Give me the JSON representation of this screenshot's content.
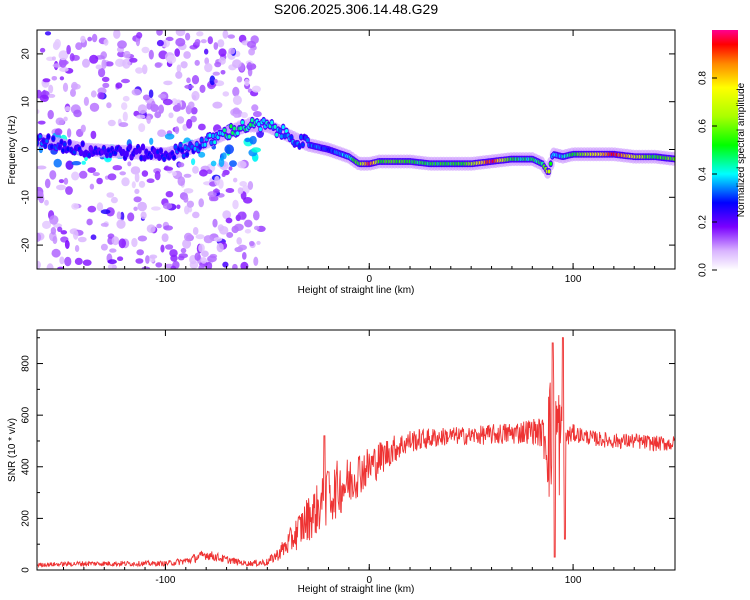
{
  "title": "S206.2025.306.14.48.G29",
  "chart_data": [
    {
      "type": "heatmap",
      "title": "S206.2025.306.14.48.G29",
      "xlabel": "Height of straight line (km)",
      "ylabel": "Frequency (Hz)",
      "xlim": [
        -163,
        150
      ],
      "ylim": [
        -25,
        25
      ],
      "xticks": [
        -100,
        0,
        100
      ],
      "yticks": [
        -20,
        -10,
        0,
        10,
        20
      ],
      "ridge": {
        "x": [
          -163,
          -140,
          -120,
          -100,
          -90,
          -80,
          -70,
          -60,
          -50,
          -40,
          -30,
          -20,
          -10,
          -5,
          0,
          5,
          10,
          20,
          30,
          40,
          50,
          60,
          70,
          80,
          85,
          88,
          90,
          95,
          100,
          110,
          120,
          130,
          140,
          150
        ],
        "freq": [
          2,
          0,
          -0.5,
          -1,
          0,
          1.5,
          3.5,
          5,
          5,
          3,
          1,
          0,
          -1.5,
          -3,
          -3,
          -2.5,
          -2.5,
          -2.5,
          -3,
          -3,
          -3,
          -2.5,
          -2,
          -2,
          -3,
          -5,
          -1,
          -1.5,
          -1,
          -1,
          -1,
          -1.5,
          -1.5,
          -2
        ],
        "amplitude": [
          0.3,
          0.25,
          0.25,
          0.25,
          0.3,
          0.35,
          0.45,
          0.45,
          0.4,
          0.35,
          0.3,
          0.3,
          0.4,
          0.55,
          0.95,
          0.55,
          0.6,
          0.5,
          0.5,
          0.5,
          0.6,
          0.95,
          0.5,
          0.45,
          0.5,
          0.7,
          0.35,
          0.4,
          0.5,
          0.7,
          0.95,
          0.7,
          0.5,
          0.6
        ]
      },
      "colorbar": {
        "label": "Normalized spectral amplitude",
        "ticks": [
          0.0,
          0.2,
          0.4,
          0.6,
          0.8
        ],
        "range": [
          0,
          1
        ]
      }
    },
    {
      "type": "line",
      "xlabel": "Height of straight line (km)",
      "ylabel": "SNR (10 * v/v)",
      "xlim": [
        -163,
        150
      ],
      "ylim": [
        0,
        930
      ],
      "xticks": [
        -100,
        0,
        100
      ],
      "yticks": [
        0,
        200,
        400,
        600,
        800
      ],
      "series": [
        {
          "name": "SNR",
          "color": "#ee3333",
          "x": [
            -163,
            -140,
            -120,
            -100,
            -90,
            -80,
            -70,
            -60,
            -50,
            -45,
            -40,
            -35,
            -30,
            -25,
            -20,
            -15,
            -10,
            -5,
            0,
            5,
            10,
            15,
            20,
            30,
            40,
            50,
            60,
            70,
            80,
            85,
            88,
            90,
            92,
            94,
            96,
            98,
            100,
            105,
            110,
            120,
            130,
            140,
            150
          ],
          "y": [
            20,
            25,
            25,
            25,
            35,
            60,
            40,
            25,
            30,
            60,
            100,
            150,
            200,
            240,
            280,
            320,
            340,
            380,
            400,
            430,
            460,
            480,
            500,
            510,
            520,
            520,
            525,
            530,
            540,
            530,
            520,
            450,
            540,
            480,
            520,
            520,
            530,
            520,
            510,
            500,
            500,
            490,
            490
          ],
          "noise": [
            8,
            10,
            10,
            10,
            15,
            20,
            15,
            10,
            15,
            25,
            45,
            70,
            90,
            100,
            110,
            110,
            100,
            90,
            80,
            70,
            60,
            50,
            45,
            40,
            35,
            35,
            40,
            45,
            50,
            60,
            250,
            300,
            300,
            200,
            80,
            40,
            35,
            30,
            30,
            30,
            30,
            30,
            30
          ],
          "spikes": [
            [
              -22,
              520
            ],
            [
              -20,
              380
            ],
            [
              90,
              880
            ],
            [
              91,
              50
            ],
            [
              95,
              900
            ],
            [
              96,
              120
            ]
          ]
        }
      ]
    }
  ]
}
